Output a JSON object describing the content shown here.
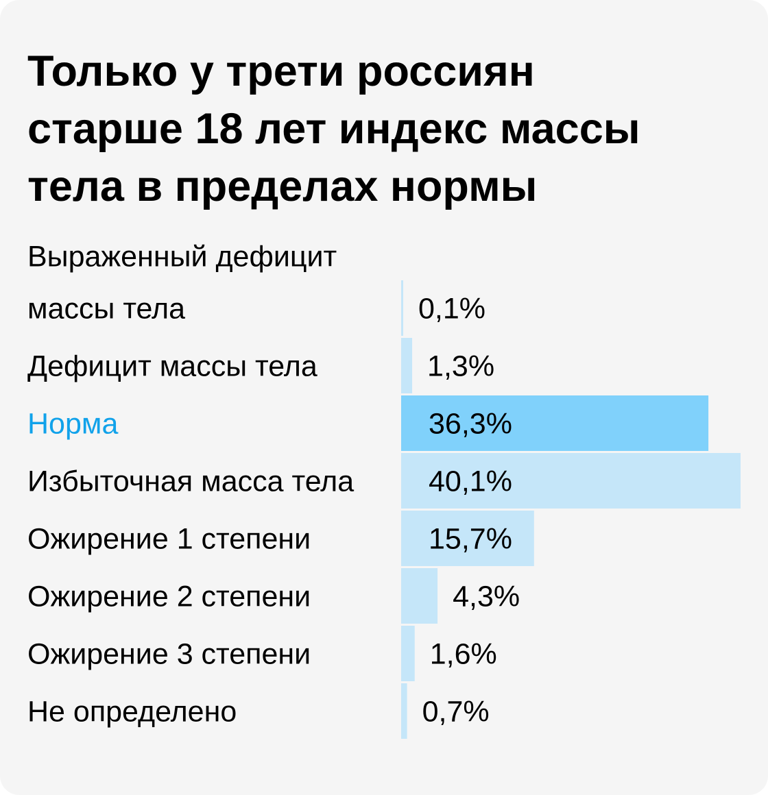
{
  "chart_data": {
    "type": "bar",
    "orientation": "horizontal",
    "title": "Только у трети россиян старше 18 лет индекс массы тела в пределах нормы",
    "title_lines": [
      "Только у трети россиян",
      "старше 18 лет индекс массы",
      "тела в пределах нормы"
    ],
    "categories": [
      [
        "Выраженный дефицит",
        "массы тела"
      ],
      [
        "Дефицит массы тела"
      ],
      [
        "Норма"
      ],
      [
        "Избыточная масса тела"
      ],
      [
        "Ожирение 1 степени"
      ],
      [
        "Ожирение 2 степени"
      ],
      [
        "Ожирение 3 степени"
      ],
      [
        "Не определено"
      ]
    ],
    "values": [
      0.1,
      1.3,
      36.3,
      40.1,
      15.7,
      4.3,
      1.6,
      0.7
    ],
    "value_labels": [
      "0,1%",
      "1,3%",
      "36,3%",
      "40,1%",
      "15,7%",
      "4,3%",
      "1,6%",
      "0,7%"
    ],
    "unit": "%",
    "highlight_index": 2,
    "xlim": [
      0,
      40.1
    ],
    "xlabel": "",
    "ylabel": "",
    "grid": false,
    "legend": "none",
    "colors": {
      "bar": "#c5e6f9",
      "bar_highlight": "#80d1fb",
      "label": "#000000",
      "label_highlight": "#11a2ea",
      "background": "#f5f5f5"
    }
  }
}
